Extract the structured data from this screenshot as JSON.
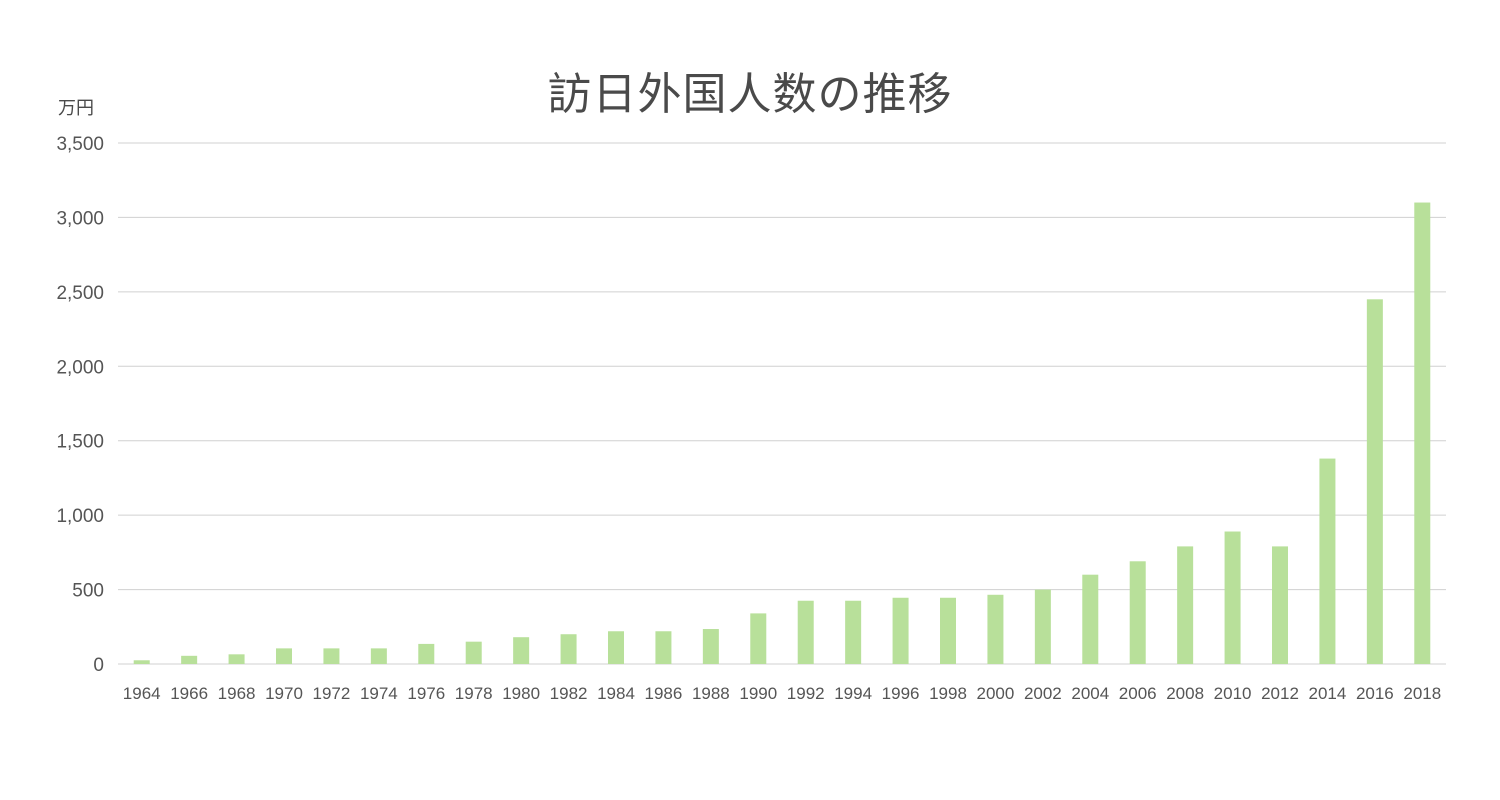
{
  "chart_data": {
    "type": "bar",
    "title": "訪日外国人数の推移",
    "ylabel": "万円",
    "xlabel": "",
    "categories": [
      "1964",
      "1966",
      "1968",
      "1970",
      "1972",
      "1974",
      "1976",
      "1978",
      "1980",
      "1982",
      "1984",
      "1986",
      "1988",
      "1990",
      "1992",
      "1994",
      "1996",
      "1998",
      "2000",
      "2002",
      "2004",
      "2006",
      "2008",
      "2010",
      "2012",
      "2014",
      "2016",
      "2018"
    ],
    "values": [
      25,
      55,
      65,
      105,
      105,
      105,
      135,
      150,
      180,
      200,
      220,
      220,
      235,
      340,
      425,
      425,
      445,
      445,
      465,
      500,
      600,
      690,
      790,
      890,
      790,
      1380,
      2450,
      3100
    ],
    "ylim": [
      0,
      3500
    ],
    "yticks": [
      0,
      500,
      1000,
      1500,
      2000,
      2500,
      3000,
      3500
    ],
    "ytick_labels": [
      "0",
      "500",
      "1,000",
      "1,500",
      "2,000",
      "2,500",
      "3,000",
      "3,500"
    ],
    "grid": true,
    "legend": "none",
    "colors": {
      "bar": "#b8e09a",
      "grid": "#d0d0d0",
      "text": "#555555",
      "title": "#4a4a4a"
    }
  }
}
